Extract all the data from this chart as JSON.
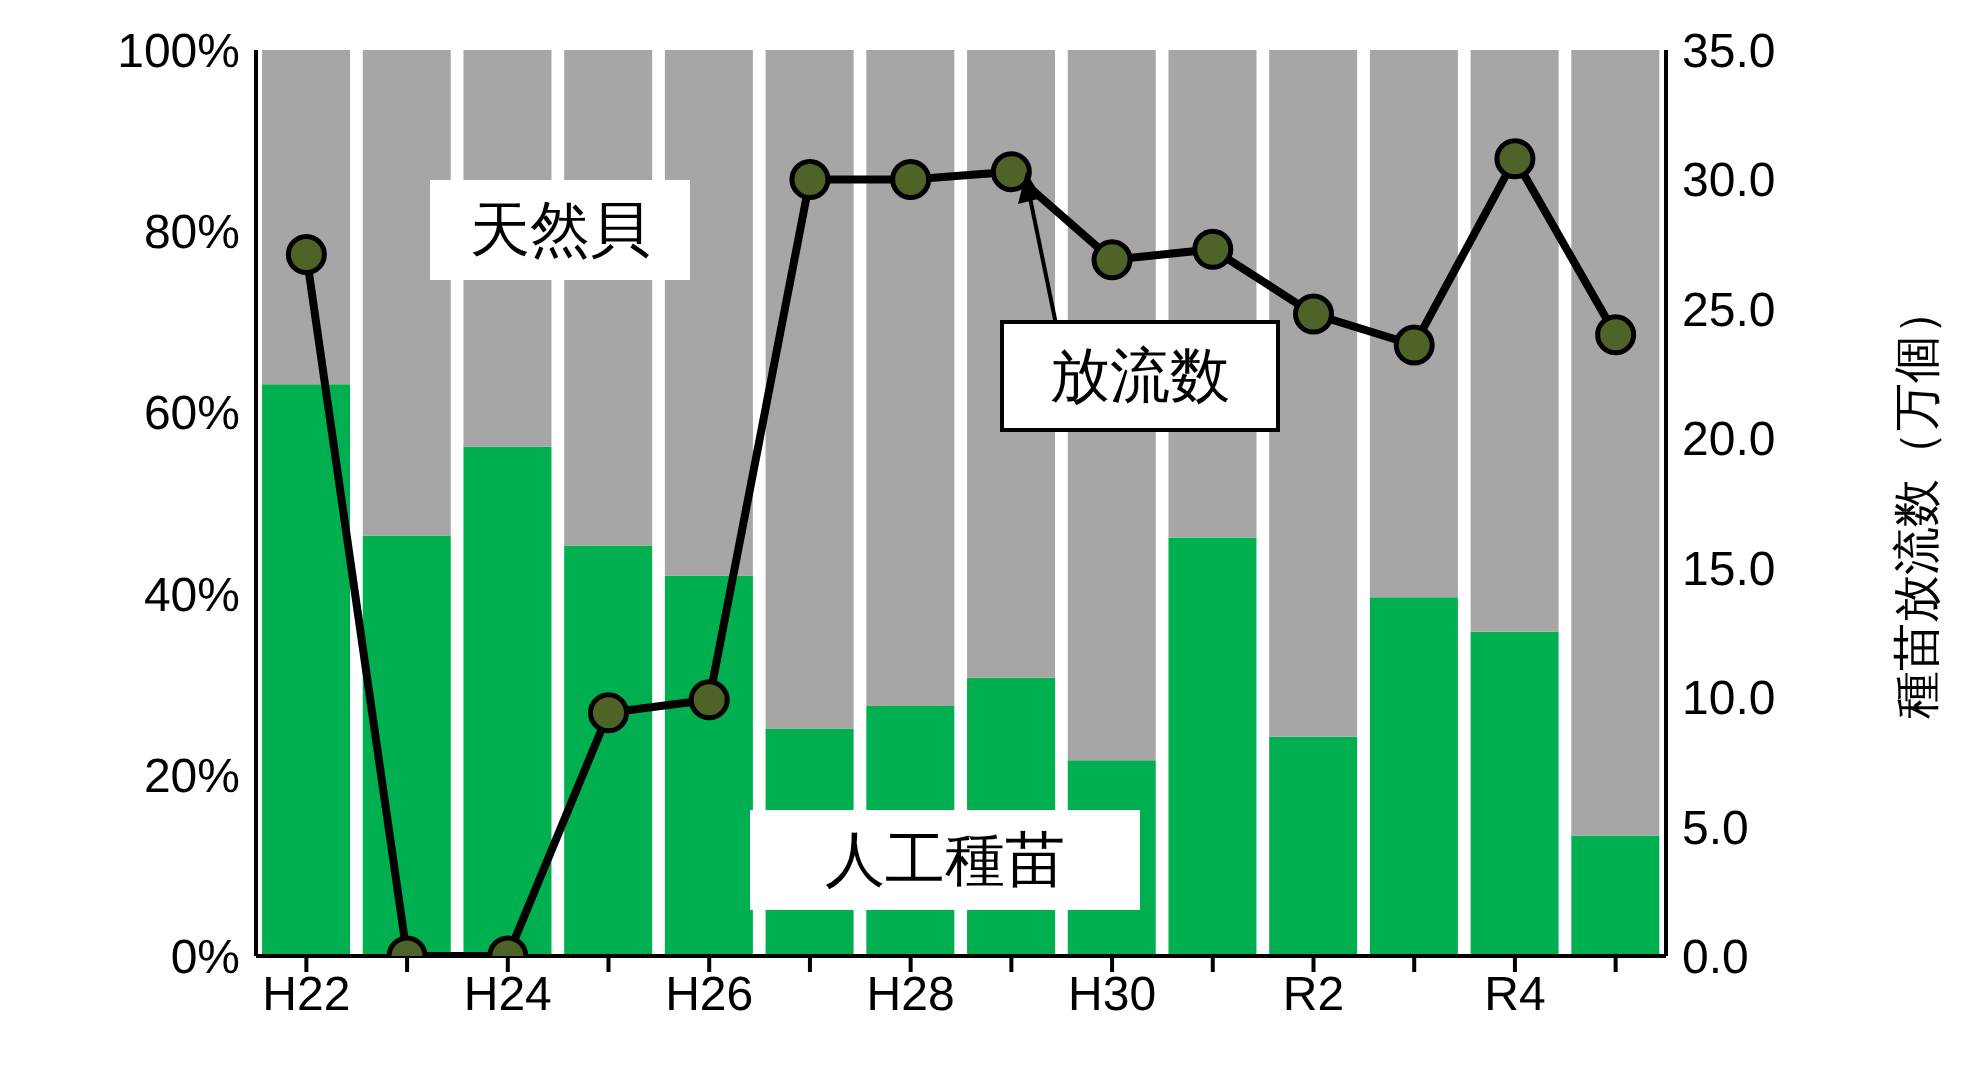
{
  "chart_data": {
    "type": "bar",
    "categories": [
      "H22",
      null,
      "H24",
      null,
      "H26",
      null,
      "H28",
      null,
      "H30",
      null,
      "R2",
      null,
      "R4",
      null
    ],
    "stacked": true,
    "series": [
      {
        "name": "人工種苗",
        "color": "#00b050",
        "values": [
          63.1,
          46.4,
          56.2,
          45.3,
          42,
          25.1,
          27.6,
          30.7,
          21.6,
          46.2,
          24.2,
          39.6,
          35.8,
          13.3
        ]
      },
      {
        "name": "天然貝",
        "color": "#a6a6a6",
        "values": [
          36.9,
          53.6,
          43.8,
          54.7,
          58,
          74.9,
          72.4,
          69.3,
          78.4,
          53.8,
          75.8,
          60.4,
          64.2,
          86.7
        ]
      },
      {
        "name": "放流数",
        "type": "line",
        "axis": "y2",
        "color": "#000000",
        "values": [
          27.1,
          0,
          0,
          9.4,
          9.9,
          30.0,
          30.0,
          30.3,
          26.9,
          27.3,
          24.8,
          23.6,
          30.8,
          24.0
        ]
      }
    ],
    "marker": "circle",
    "ylim": [
      0,
      100
    ],
    "yticks": [
      {
        "value": 0,
        "label": "0%"
      },
      {
        "value": 20,
        "label": "20%"
      },
      {
        "value": 40,
        "label": "40%"
      },
      {
        "value": 60,
        "label": "60%"
      },
      {
        "value": 80,
        "label": "80%"
      },
      {
        "value": 100,
        "label": "100%"
      }
    ],
    "y2lim": [
      0,
      35
    ],
    "y2ticks": [
      {
        "value": 0,
        "label": "0.0"
      },
      {
        "value": 5,
        "label": "5.0"
      },
      {
        "value": 10,
        "label": "10.0"
      },
      {
        "value": 15,
        "label": "15.0"
      },
      {
        "value": 20,
        "label": "20.0"
      },
      {
        "value": 25,
        "label": "25.0"
      },
      {
        "value": 30,
        "label": "30.0"
      },
      {
        "value": 35,
        "label": "35.0"
      }
    ],
    "y2label": "種苗放流数（万個）"
  }
}
